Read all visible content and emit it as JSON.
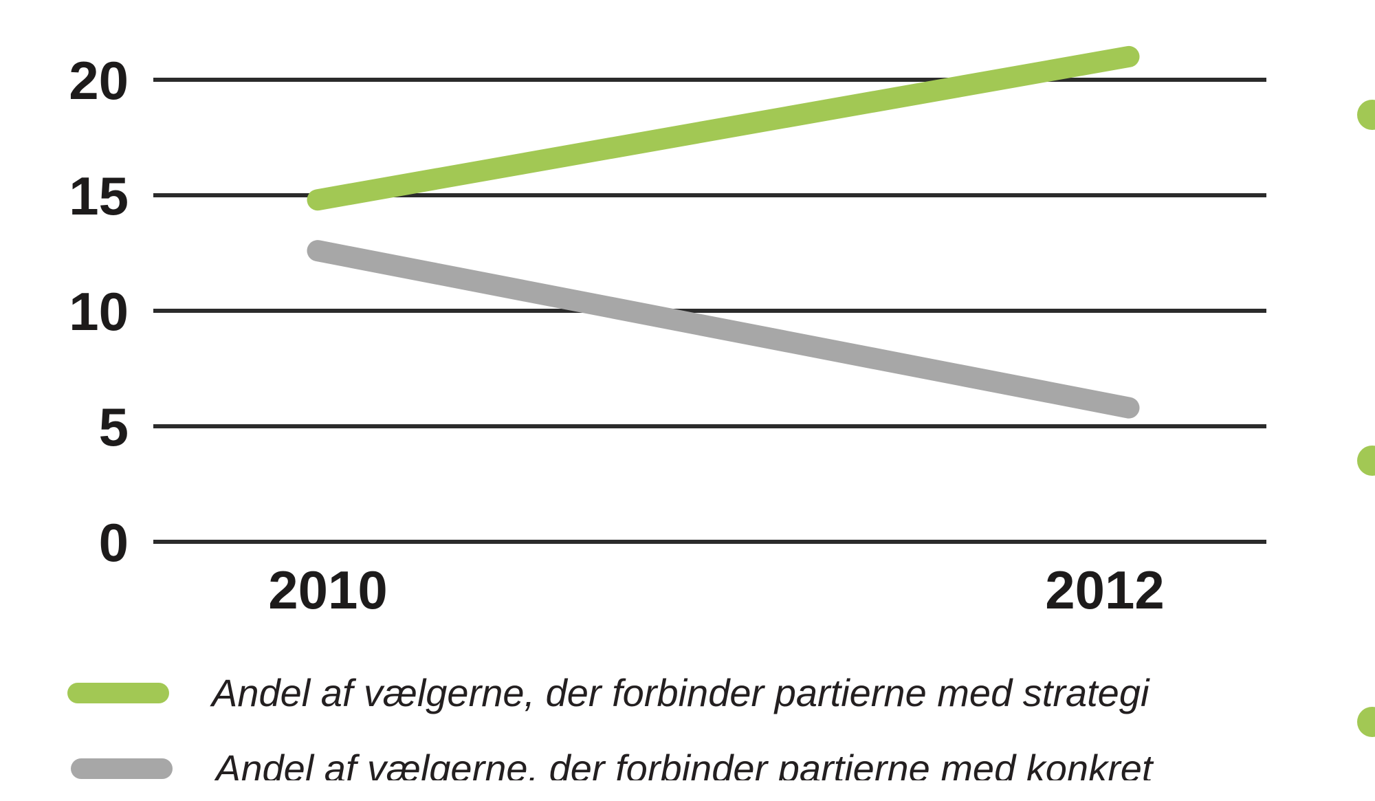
{
  "colors": {
    "accent_green": "#a2c854",
    "series_gray": "#a7a7a7",
    "gridline": "#2b2b2b",
    "axis_text": "#1d1b1b",
    "legend_text": "#231f20",
    "background": "#ffffff"
  },
  "chart_data": {
    "type": "line",
    "title": "",
    "xlabel": "",
    "ylabel": "",
    "categories": [
      "2010",
      "2012"
    ],
    "x": [
      2010,
      2012
    ],
    "series": [
      {
        "name": "Andel af vælgerne, der forbinder partierne med strategi",
        "color": "#a2c854",
        "values": [
          14.8,
          21.0
        ]
      },
      {
        "name": "Andel af vælgerne, der forbinder partierne med konkret",
        "color": "#a7a7a7",
        "values": [
          12.6,
          5.8
        ]
      }
    ],
    "yticks": [
      0,
      5,
      10,
      15,
      20
    ],
    "ytick_labels": [
      "0",
      "5",
      "10",
      "15",
      "20"
    ],
    "ylim": [
      0,
      22
    ],
    "grid": true,
    "legend_position": "bottom-left",
    "legend_style": "italic",
    "notes": "second legend entry clipped at bottom edge of image"
  },
  "decor": {
    "right_edge_bullets": {
      "count": 3,
      "color": "#a2c854"
    }
  }
}
